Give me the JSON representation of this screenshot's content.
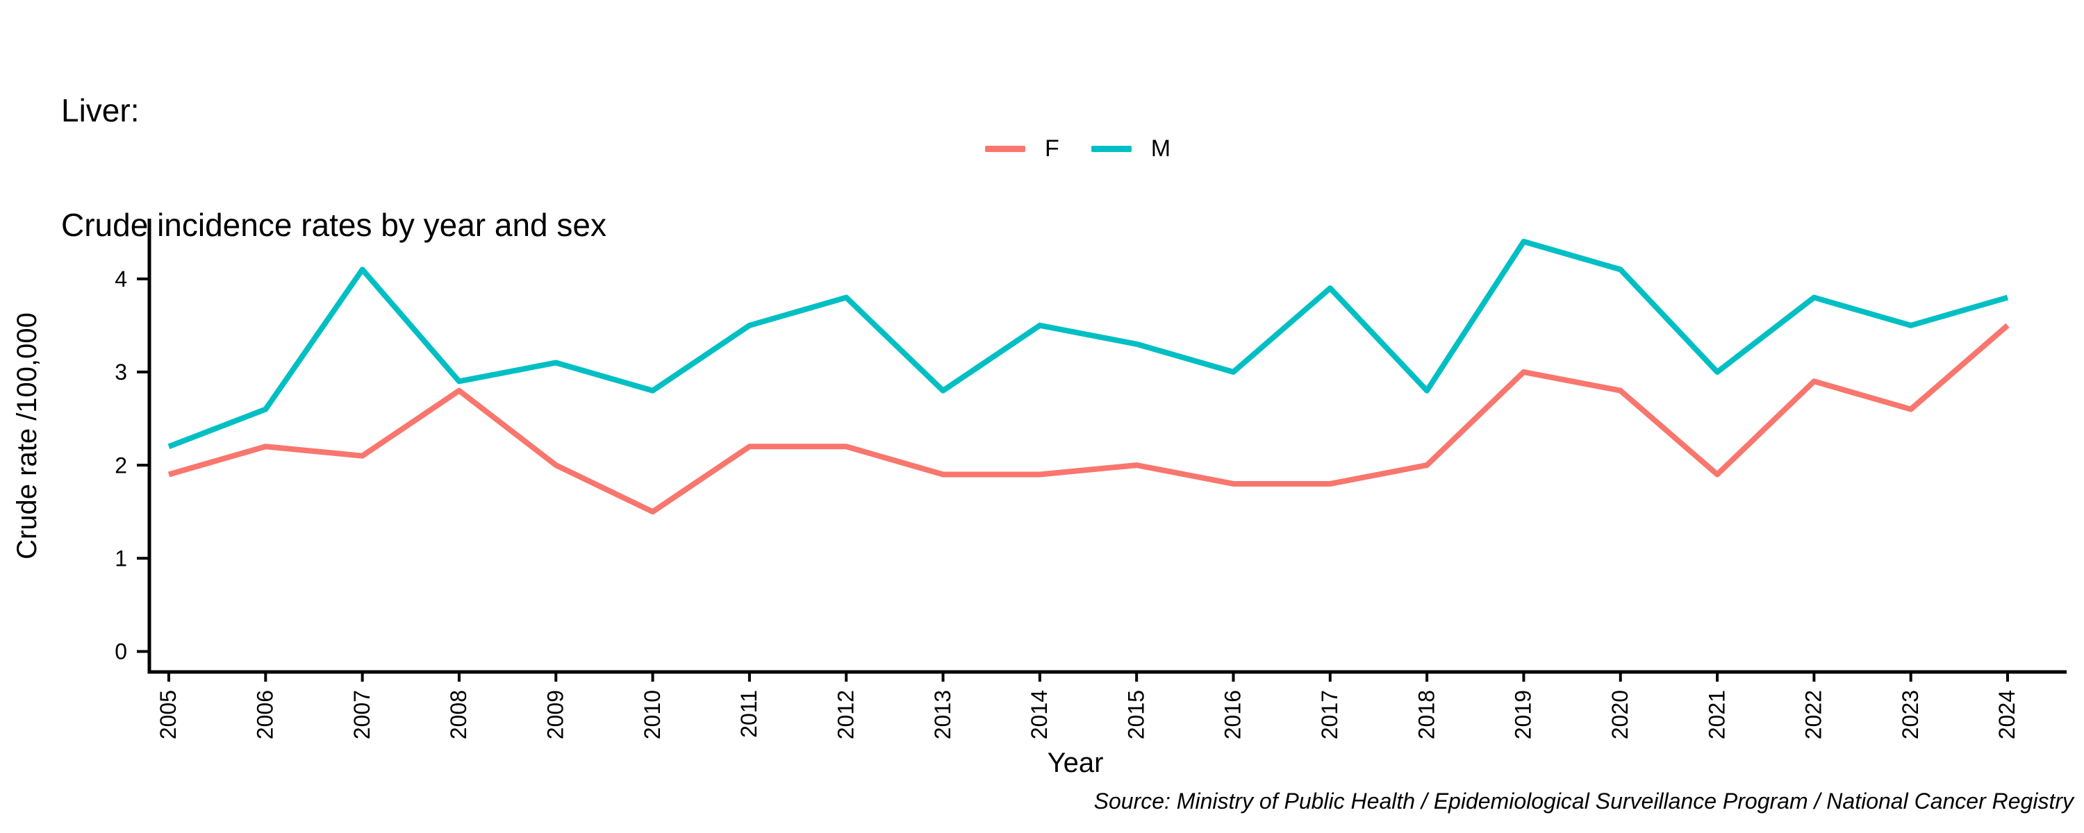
{
  "title": {
    "line1": "Liver:",
    "line2": "Crude incidence rates by year and sex"
  },
  "legend": {
    "items": [
      {
        "label": "F",
        "color": "#F8766D"
      },
      {
        "label": "M",
        "color": "#00BFC4"
      }
    ]
  },
  "source_note": "Source: Ministry of Public Health / Epidemiological Surveillance Program / National Cancer Registry",
  "colors": {
    "series_f": "#F8766D",
    "series_m": "#00BFC4",
    "axis": "#000000",
    "text": "#000000",
    "background": "#FFFFFF"
  },
  "chart_data": {
    "type": "line",
    "title": "Liver: Crude incidence rates by year and sex",
    "xlabel": "Year",
    "ylabel": "Crude rate /100,000",
    "categories": [
      2005,
      2006,
      2007,
      2008,
      2009,
      2010,
      2011,
      2012,
      2013,
      2014,
      2015,
      2016,
      2017,
      2018,
      2019,
      2020,
      2021,
      2022,
      2023,
      2024
    ],
    "series": [
      {
        "name": "F",
        "color": "#F8766D",
        "values": [
          1.9,
          2.2,
          2.1,
          2.8,
          2.0,
          1.5,
          2.2,
          2.2,
          1.9,
          1.9,
          2.0,
          1.8,
          1.8,
          2.0,
          3.0,
          2.8,
          1.9,
          2.9,
          2.6,
          3.5
        ]
      },
      {
        "name": "M",
        "color": "#00BFC4",
        "values": [
          2.2,
          2.6,
          4.1,
          2.9,
          3.1,
          2.8,
          3.5,
          3.8,
          2.8,
          3.5,
          3.3,
          3.0,
          3.9,
          2.8,
          4.4,
          4.1,
          3.0,
          3.8,
          3.5,
          3.8
        ]
      }
    ],
    "y_ticks": [
      0,
      1,
      2,
      3,
      4
    ],
    "ylim": [
      0,
      4.5
    ],
    "grid": false,
    "legend_position": "top-center"
  }
}
